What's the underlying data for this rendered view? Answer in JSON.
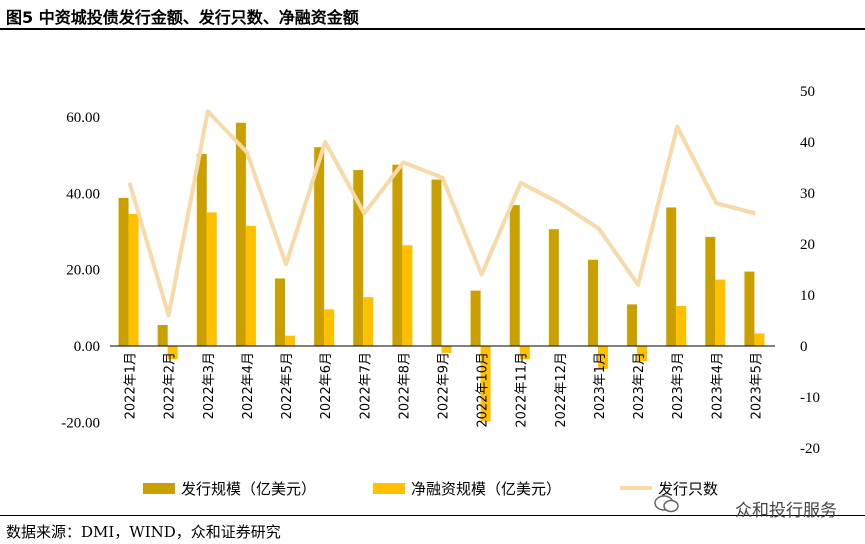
{
  "title": "图5 中资城投债发行金额、发行只数、净融资金额",
  "source": "数据来源：DMI，WIND，众和证券研究",
  "watermark": "众和投行服务",
  "chart_data": {
    "type": "bar",
    "categories": [
      "2022年1月",
      "2022年2月",
      "2022年3月",
      "2022年4月",
      "2022年5月",
      "2022年6月",
      "2022年7月",
      "2022年8月",
      "2022年9月",
      "2022年10月",
      "2022年11月",
      "2022年12月",
      "2023年1月",
      "2023年2月",
      "2023年3月",
      "2023年4月",
      "2023年5月"
    ],
    "series": [
      {
        "name": "发行规模（亿美元）",
        "type": "bar",
        "axis": "left",
        "color": "#C9A000",
        "values": [
          38.8,
          5.5,
          50.3,
          58.5,
          17.7,
          52.1,
          46.1,
          47.5,
          43.6,
          14.5,
          36.9,
          30.6,
          22.6,
          10.9,
          36.3,
          28.6,
          19.5
        ]
      },
      {
        "name": "净融资规模（亿美元）",
        "type": "bar",
        "axis": "left",
        "color": "#FFC000",
        "values": [
          34.6,
          -3.5,
          35.0,
          31.5,
          2.7,
          9.6,
          12.8,
          26.4,
          -1.8,
          -19.8,
          -3.5,
          0,
          -6.0,
          -4.0,
          10.5,
          17.4,
          3.3
        ]
      },
      {
        "name": "发行只数",
        "type": "line",
        "axis": "right",
        "color": "#F8D9A8",
        "values": [
          32,
          6,
          46,
          38,
          16,
          40,
          26,
          36,
          33,
          14,
          32,
          28,
          23,
          12,
          43,
          28,
          26
        ]
      }
    ],
    "y_left": {
      "min": -20,
      "max": 60,
      "ticks": [
        -20,
        0,
        20,
        40,
        60
      ],
      "tick_labels": [
        "-20.00",
        "0.00",
        "20.00",
        "40.00",
        "60.00"
      ]
    },
    "y_right": {
      "min": -20,
      "max": 50,
      "ticks": [
        -20,
        -10,
        0,
        10,
        20,
        30,
        40,
        50
      ],
      "tick_labels": [
        "-20",
        "-10",
        "0",
        "10",
        "20",
        "30",
        "40",
        "50"
      ]
    },
    "grid": false,
    "legend_position": "bottom"
  }
}
